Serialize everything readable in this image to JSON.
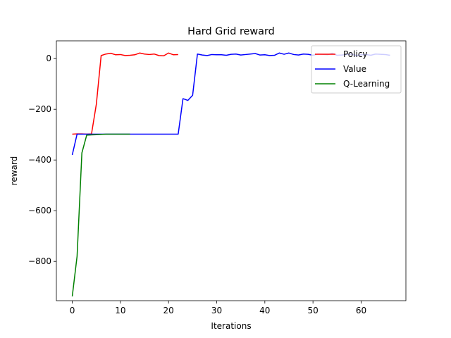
{
  "chart_data": {
    "type": "line",
    "title": "Hard Grid reward",
    "xlabel": "Iterations",
    "ylabel": "reward",
    "xlim": [
      -3.3,
      69.3
    ],
    "ylim": [
      -955,
      70
    ],
    "xticks": [
      0,
      10,
      20,
      30,
      40,
      50,
      60
    ],
    "yticks": [
      -800,
      -600,
      -400,
      -200,
      0
    ],
    "grid": false,
    "legend_position": "top-right",
    "series": [
      {
        "name": "Policy",
        "color": "#ff0000",
        "x": [
          0,
          1,
          2,
          3,
          4,
          5,
          6,
          7,
          8,
          9,
          10,
          11,
          12,
          13,
          14,
          15,
          16,
          17,
          18,
          19,
          20,
          21,
          22
        ],
        "y": [
          -298,
          -297,
          -297,
          -298,
          -297,
          -180,
          12,
          18,
          21,
          15,
          16,
          12,
          13,
          15,
          22,
          18,
          16,
          18,
          12,
          11,
          22,
          15,
          16
        ]
      },
      {
        "name": "Value",
        "color": "#0000ff",
        "x": [
          0,
          1,
          2,
          3,
          4,
          5,
          6,
          7,
          8,
          9,
          10,
          11,
          12,
          13,
          14,
          15,
          16,
          17,
          18,
          19,
          20,
          21,
          22,
          23,
          24,
          25,
          26,
          27,
          28,
          29,
          30,
          31,
          32,
          33,
          34,
          35,
          36,
          37,
          38,
          39,
          40,
          41,
          42,
          43,
          44,
          45,
          46,
          47,
          48,
          49,
          50,
          51,
          52,
          53,
          54,
          55,
          56,
          57,
          58,
          59,
          60,
          61,
          62,
          63,
          64,
          65,
          66
        ],
        "y": [
          -380,
          -298,
          -298,
          -298,
          -298,
          -298,
          -298,
          -298,
          -298,
          -298,
          -298,
          -298,
          -298,
          -298,
          -298,
          -298,
          -298,
          -298,
          -298,
          -298,
          -298,
          -298,
          -298,
          -158,
          -165,
          -145,
          18,
          14,
          12,
          16,
          15,
          15,
          13,
          17,
          18,
          14,
          16,
          18,
          20,
          14,
          15,
          12,
          13,
          22,
          17,
          22,
          16,
          14,
          18,
          17,
          13,
          18,
          17,
          15,
          21,
          13,
          14,
          16,
          18,
          12,
          15,
          16,
          13,
          18,
          17,
          16,
          13
        ]
      },
      {
        "name": "Q-Learning",
        "color": "#008000",
        "x": [
          0,
          1,
          2,
          3,
          4,
          5,
          6,
          7,
          8,
          9,
          10,
          11,
          12
        ],
        "y": [
          -938,
          -780,
          -372,
          -302,
          -301,
          -300,
          -299,
          -298,
          -298,
          -298,
          -298,
          -298,
          -298
        ]
      }
    ]
  }
}
